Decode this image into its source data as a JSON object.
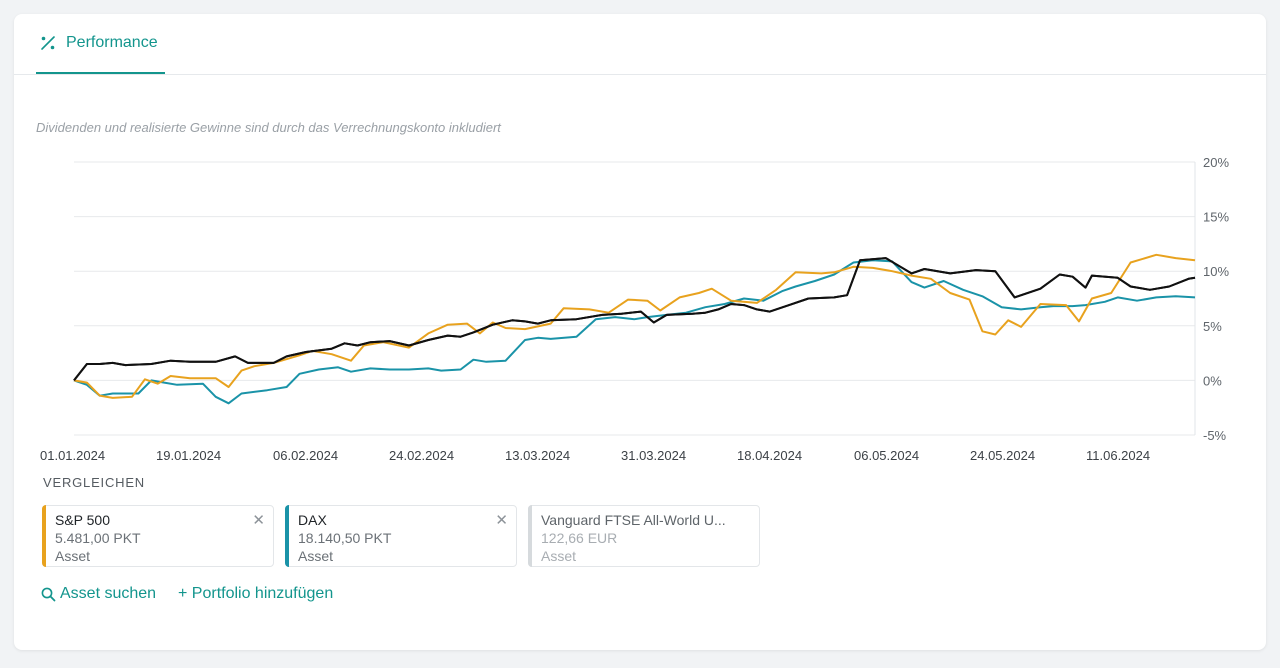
{
  "tab": {
    "label": "Performance",
    "icon": "percent-icon"
  },
  "note": "Dividenden und realisierte Gewinne sind durch das Verrechnungskonto inkludiert",
  "compare": {
    "title": "VERGLEICHEN",
    "items": [
      {
        "name": "S&P 500",
        "value": "5.481,00 PKT",
        "type": "Asset",
        "color": "#e8a21e",
        "active": true
      },
      {
        "name": "DAX",
        "value": "18.140,50 PKT",
        "type": "Asset",
        "color": "#1a93a8",
        "active": true
      },
      {
        "name": "Vanguard FTSE All-World U...",
        "value": "122,66 EUR",
        "type": "Asset",
        "color": "#d6dadd",
        "active": false
      }
    ],
    "search_label": "Asset suchen",
    "add_label": "+ Portfolio hinzufügen"
  },
  "colors": {
    "accent": "#13958d",
    "portfolio": "#111111",
    "sp500": "#e8a21e",
    "dax": "#1a93a8"
  },
  "chart_data": {
    "type": "line",
    "x_ticks": [
      "01.01.2024",
      "19.01.2024",
      "06.02.2024",
      "24.02.2024",
      "13.03.2024",
      "31.03.2024",
      "18.04.2024",
      "06.05.2024",
      "24.05.2024",
      "11.06.2024"
    ],
    "y_ticks": [
      "20%",
      "15%",
      "10%",
      "5%",
      "0%",
      "-5%"
    ],
    "ylim": [
      -5,
      20
    ],
    "x_range_days": [
      0,
      174
    ],
    "grid": true,
    "series": [
      {
        "color": "#111111",
        "points": [
          [
            0,
            0
          ],
          [
            2,
            1.5
          ],
          [
            4,
            1.5
          ],
          [
            6,
            1.6
          ],
          [
            8,
            1.4
          ],
          [
            12,
            1.5
          ],
          [
            15,
            1.8
          ],
          [
            18,
            1.7
          ],
          [
            22,
            1.7
          ],
          [
            25,
            2.2
          ],
          [
            27,
            1.6
          ],
          [
            31,
            1.6
          ],
          [
            33,
            2.2
          ],
          [
            36,
            2.6
          ],
          [
            40,
            2.9
          ],
          [
            42,
            3.4
          ],
          [
            44,
            3.2
          ],
          [
            46,
            3.5
          ],
          [
            49,
            3.6
          ],
          [
            52,
            3.2
          ],
          [
            55,
            3.7
          ],
          [
            58,
            4.1
          ],
          [
            60,
            4.0
          ],
          [
            62,
            4.4
          ],
          [
            65,
            5.1
          ],
          [
            68,
            5.5
          ],
          [
            70,
            5.4
          ],
          [
            72,
            5.2
          ],
          [
            74,
            5.5
          ],
          [
            78,
            5.6
          ],
          [
            82,
            6.0
          ],
          [
            85,
            6.1
          ],
          [
            88,
            6.3
          ],
          [
            90,
            5.3
          ],
          [
            92,
            6.0
          ],
          [
            96,
            6.1
          ],
          [
            98,
            6.2
          ],
          [
            100,
            6.5
          ],
          [
            102,
            7.0
          ],
          [
            104,
            6.9
          ],
          [
            106,
            6.5
          ],
          [
            108,
            6.3
          ],
          [
            111,
            6.9
          ],
          [
            114,
            7.5
          ],
          [
            118,
            7.6
          ],
          [
            120,
            7.8
          ],
          [
            122,
            11.0
          ],
          [
            126,
            11.2
          ],
          [
            128,
            10.5
          ],
          [
            130,
            9.8
          ],
          [
            132,
            10.2
          ],
          [
            136,
            9.8
          ],
          [
            140,
            10.1
          ],
          [
            143,
            10.0
          ],
          [
            146,
            7.6
          ],
          [
            150,
            8.4
          ],
          [
            153,
            9.7
          ],
          [
            155,
            9.5
          ],
          [
            157,
            8.5
          ],
          [
            158,
            9.6
          ],
          [
            162,
            9.4
          ],
          [
            164,
            8.6
          ],
          [
            167,
            8.3
          ],
          [
            170,
            8.6
          ],
          [
            173,
            9.3
          ],
          [
            174,
            9.4
          ]
        ]
      },
      {
        "color": "#e8a21e",
        "points": [
          [
            0,
            0
          ],
          [
            2,
            -0.2
          ],
          [
            4,
            -1.4
          ],
          [
            6,
            -1.6
          ],
          [
            9,
            -1.5
          ],
          [
            11,
            0.1
          ],
          [
            13,
            -0.3
          ],
          [
            15,
            0.4
          ],
          [
            18,
            0.2
          ],
          [
            22,
            0.2
          ],
          [
            24,
            -0.6
          ],
          [
            26,
            0.9
          ],
          [
            28,
            1.3
          ],
          [
            31,
            1.6
          ],
          [
            35,
            2.3
          ],
          [
            37,
            2.7
          ],
          [
            40,
            2.4
          ],
          [
            43,
            1.8
          ],
          [
            45,
            3.2
          ],
          [
            48,
            3.5
          ],
          [
            52,
            3.0
          ],
          [
            55,
            4.3
          ],
          [
            58,
            5.1
          ],
          [
            61,
            5.2
          ],
          [
            63,
            4.3
          ],
          [
            65,
            5.3
          ],
          [
            67,
            4.8
          ],
          [
            70,
            4.7
          ],
          [
            74,
            5.2
          ],
          [
            76,
            6.6
          ],
          [
            80,
            6.5
          ],
          [
            83,
            6.2
          ],
          [
            86,
            7.4
          ],
          [
            89,
            7.3
          ],
          [
            91,
            6.4
          ],
          [
            94,
            7.6
          ],
          [
            97,
            8.0
          ],
          [
            99,
            8.4
          ],
          [
            102,
            7.3
          ],
          [
            106,
            7.1
          ],
          [
            109,
            8.3
          ],
          [
            112,
            9.9
          ],
          [
            116,
            9.8
          ],
          [
            118,
            9.9
          ],
          [
            121,
            10.4
          ],
          [
            124,
            10.3
          ],
          [
            127,
            10.0
          ],
          [
            130,
            9.6
          ],
          [
            133,
            9.3
          ],
          [
            136,
            8.0
          ],
          [
            139,
            7.4
          ],
          [
            141,
            4.5
          ],
          [
            143,
            4.2
          ],
          [
            145,
            5.5
          ],
          [
            147,
            4.9
          ],
          [
            150,
            7.0
          ],
          [
            154,
            6.9
          ],
          [
            156,
            5.4
          ],
          [
            158,
            7.5
          ],
          [
            161,
            8.0
          ],
          [
            164,
            10.8
          ],
          [
            168,
            11.5
          ],
          [
            171,
            11.2
          ],
          [
            174,
            11.0
          ]
        ]
      },
      {
        "color": "#1a93a8",
        "points": [
          [
            0,
            0
          ],
          [
            2,
            -0.4
          ],
          [
            4,
            -1.4
          ],
          [
            6,
            -1.2
          ],
          [
            10,
            -1.2
          ],
          [
            12,
            0.0
          ],
          [
            14,
            -0.2
          ],
          [
            16,
            -0.4
          ],
          [
            20,
            -0.3
          ],
          [
            22,
            -1.5
          ],
          [
            24,
            -2.1
          ],
          [
            26,
            -1.2
          ],
          [
            30,
            -0.9
          ],
          [
            33,
            -0.6
          ],
          [
            35,
            0.6
          ],
          [
            38,
            1.0
          ],
          [
            41,
            1.2
          ],
          [
            43,
            0.8
          ],
          [
            46,
            1.1
          ],
          [
            49,
            1.0
          ],
          [
            52,
            1.0
          ],
          [
            55,
            1.1
          ],
          [
            57,
            0.9
          ],
          [
            60,
            1.0
          ],
          [
            62,
            1.9
          ],
          [
            64,
            1.7
          ],
          [
            67,
            1.8
          ],
          [
            70,
            3.7
          ],
          [
            72,
            3.9
          ],
          [
            74,
            3.8
          ],
          [
            78,
            4.0
          ],
          [
            81,
            5.6
          ],
          [
            84,
            5.8
          ],
          [
            87,
            5.6
          ],
          [
            89,
            5.8
          ],
          [
            92,
            6.0
          ],
          [
            95,
            6.2
          ],
          [
            98,
            6.7
          ],
          [
            101,
            7.0
          ],
          [
            104,
            7.5
          ],
          [
            107,
            7.3
          ],
          [
            110,
            8.2
          ],
          [
            112,
            8.6
          ],
          [
            115,
            9.1
          ],
          [
            118,
            9.7
          ],
          [
            121,
            10.8
          ],
          [
            124,
            11.0
          ],
          [
            127,
            10.9
          ],
          [
            130,
            9.0
          ],
          [
            132,
            8.5
          ],
          [
            135,
            9.1
          ],
          [
            138,
            8.3
          ],
          [
            141,
            7.7
          ],
          [
            144,
            6.7
          ],
          [
            147,
            6.5
          ],
          [
            150,
            6.7
          ],
          [
            152,
            6.8
          ],
          [
            155,
            6.8
          ],
          [
            157,
            6.9
          ],
          [
            160,
            7.2
          ],
          [
            162,
            7.6
          ],
          [
            165,
            7.3
          ],
          [
            168,
            7.6
          ],
          [
            171,
            7.7
          ],
          [
            174,
            7.6
          ]
        ]
      }
    ]
  }
}
